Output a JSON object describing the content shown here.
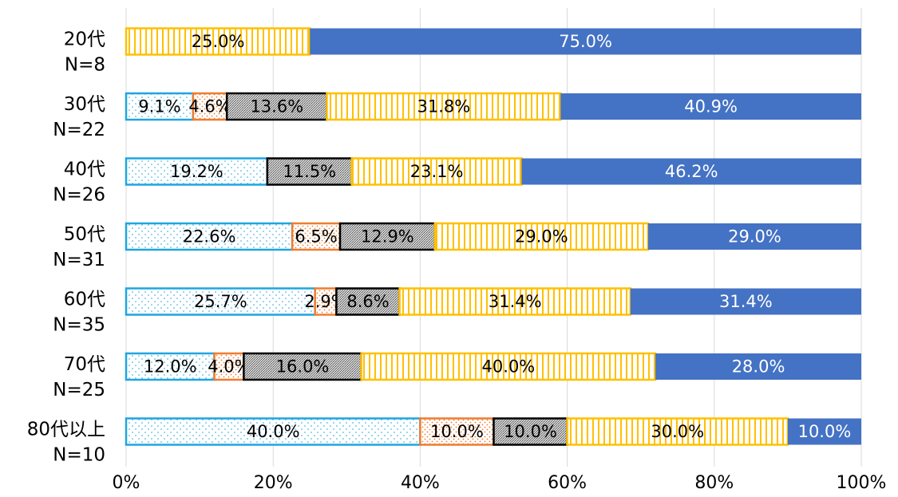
{
  "chart_data": {
    "type": "stacked-barh",
    "categories": [
      [
        "20代",
        "N=8"
      ],
      [
        "30代",
        "N=22"
      ],
      [
        "40代",
        "N=26"
      ],
      [
        "50代",
        "N=31"
      ],
      [
        "60代",
        "N=35"
      ],
      [
        "70代",
        "N=25"
      ],
      [
        "80代以上",
        "N=10"
      ]
    ],
    "series": [
      {
        "color": "#1ea6e0",
        "pattern": "dots",
        "label_color": "#000000",
        "values": [
          null,
          9.1,
          19.2,
          22.6,
          25.7,
          12.0,
          40.0
        ],
        "value_labels": [
          null,
          "9.1%",
          "19.2%",
          "22.6%",
          "25.7%",
          "12.0%",
          "40.0%"
        ]
      },
      {
        "color": "#ed7d31",
        "pattern": "dots",
        "label_color": "#000000",
        "values": [
          null,
          4.6,
          null,
          6.5,
          2.9,
          4.0,
          10.0
        ],
        "value_labels": [
          null,
          "4.6%",
          null,
          "6.5%",
          "2.9%",
          "4.0%",
          "10.0%"
        ]
      },
      {
        "color": "#000000",
        "pattern": "dense",
        "label_color": "#000000",
        "values": [
          null,
          13.6,
          11.5,
          12.9,
          8.6,
          16.0,
          10.0
        ],
        "value_labels": [
          null,
          "13.6%",
          "11.5%",
          "12.9%",
          "8.6%",
          "16.0%",
          "10.0%"
        ]
      },
      {
        "color": "#ffc000",
        "pattern": "vertical",
        "label_color": "#000000",
        "values": [
          25.0,
          31.8,
          23.1,
          29.0,
          31.4,
          40.0,
          30.0
        ],
        "value_labels": [
          "25.0%",
          "31.8%",
          "23.1%",
          "29.0%",
          "31.4%",
          "40.0%",
          "30.0%"
        ]
      },
      {
        "color": "#4472c4",
        "pattern": "solid",
        "label_color": "#ffffff",
        "values": [
          75.0,
          40.9,
          46.2,
          29.0,
          31.4,
          28.0,
          10.0
        ],
        "value_labels": [
          "75.0%",
          "40.9%",
          "46.2%",
          "29.0%",
          "31.4%",
          "28.0%",
          "10.0%"
        ]
      }
    ],
    "xlim": [
      0,
      100
    ],
    "xticks": [
      {
        "value": 0,
        "label": "0%"
      },
      {
        "value": 20,
        "label": "20%"
      },
      {
        "value": 40,
        "label": "40%"
      },
      {
        "value": 60,
        "label": "60%"
      },
      {
        "value": 80,
        "label": "80%"
      },
      {
        "value": 100,
        "label": "100%"
      }
    ],
    "grid": true
  }
}
